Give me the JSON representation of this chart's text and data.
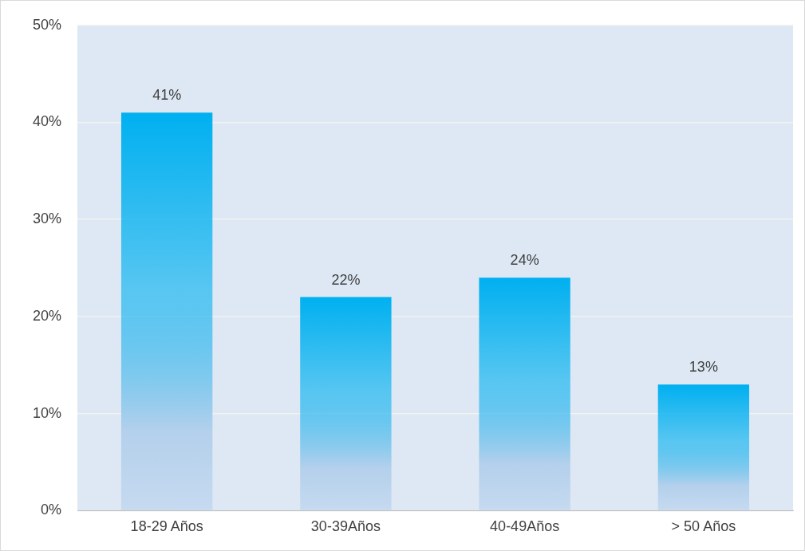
{
  "chart_data": {
    "type": "bar",
    "categories": [
      "18-29 Años",
      "30-39Años",
      "40-49Años",
      "> 50 Años"
    ],
    "values": [
      41,
      22,
      24,
      13
    ],
    "value_labels": [
      "41%",
      "22%",
      "24%",
      "13%"
    ],
    "color": "#00b0f0",
    "ylim": [
      0,
      50
    ],
    "yticks": [
      {
        "value": 0,
        "label": "0%"
      },
      {
        "value": 10,
        "label": "10%"
      },
      {
        "value": 20,
        "label": "20%"
      },
      {
        "value": 30,
        "label": "30%"
      },
      {
        "value": 40,
        "label": "40%"
      },
      {
        "value": 50,
        "label": "50%"
      }
    ],
    "grid": "y",
    "legend": false
  }
}
